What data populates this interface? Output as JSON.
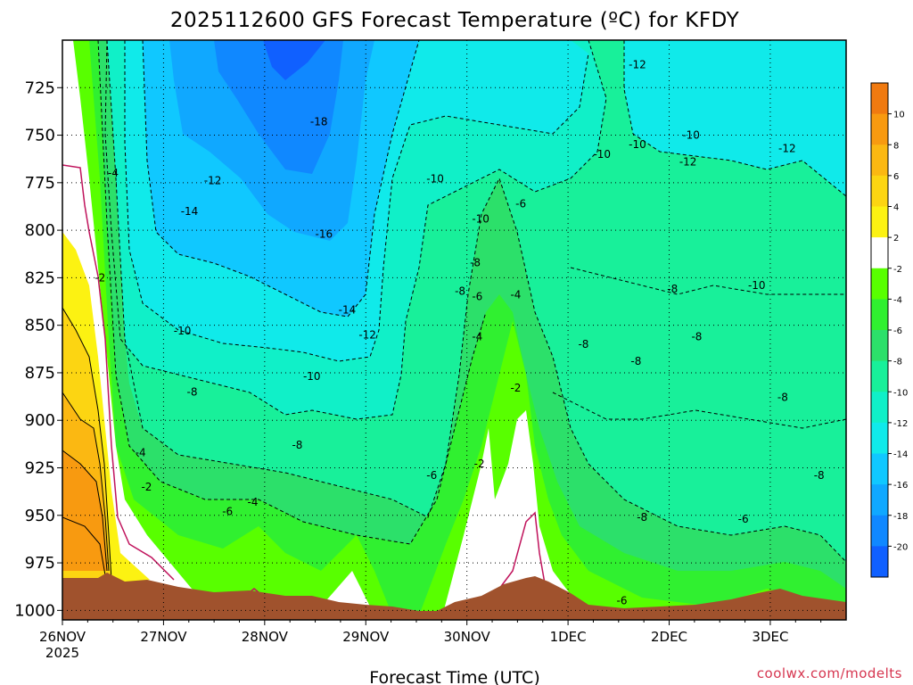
{
  "chart_data": {
    "type": "heatmap",
    "title": "2025112600 GFS Forecast Temperature (ºC) for KFDY",
    "xlabel": "Forecast Time (UTC)",
    "ylabel": "",
    "credit": "coolwx.com/modelts",
    "x_ticks": [
      "26NOV",
      "27NOV",
      "28NOV",
      "29NOV",
      "30NOV",
      "1DEC",
      "2DEC",
      "3DEC"
    ],
    "x_tick_sublabel": "2025",
    "x_range_days": [
      0,
      7.75
    ],
    "y_ticks": [
      725,
      750,
      775,
      800,
      825,
      850,
      875,
      900,
      925,
      950,
      975,
      1000
    ],
    "y_range_hpa": [
      700,
      1005
    ],
    "grid": true,
    "colorbar": {
      "levels": [
        10,
        8,
        6,
        4,
        2,
        -2,
        -4,
        -6,
        -8,
        -10,
        -12,
        -14,
        -16,
        -18,
        -20
      ],
      "colors": [
        "#f07a10",
        "#f89a10",
        "#fbb812",
        "#fcd512",
        "#fcf212",
        "#ffffff",
        "#58ff00",
        "#30f030",
        "#2ce06a",
        "#18f09a",
        "#10f0c8",
        "#10eaea",
        "#10c8ff",
        "#10a8ff",
        "#1088ff",
        "#1060ff"
      ]
    },
    "contour_labels": [
      {
        "text": "-4",
        "x": 0.45,
        "y": 770
      },
      {
        "text": "-2",
        "x": 0.32,
        "y": 825
      },
      {
        "text": "-4",
        "x": 0.72,
        "y": 917
      },
      {
        "text": "-2",
        "x": 0.78,
        "y": 935
      },
      {
        "text": "-10",
        "x": 1.1,
        "y": 853
      },
      {
        "text": "-8",
        "x": 1.23,
        "y": 885
      },
      {
        "text": "-14",
        "x": 1.17,
        "y": 790
      },
      {
        "text": "-12",
        "x": 1.4,
        "y": 774
      },
      {
        "text": "-6",
        "x": 1.58,
        "y": 948
      },
      {
        "text": "-4",
        "x": 1.83,
        "y": 943
      },
      {
        "text": "-8",
        "x": 2.27,
        "y": 913
      },
      {
        "text": "-10",
        "x": 2.38,
        "y": 877
      },
      {
        "text": "-18",
        "x": 2.45,
        "y": 743
      },
      {
        "text": "-16",
        "x": 2.5,
        "y": 802
      },
      {
        "text": "-14",
        "x": 2.73,
        "y": 842
      },
      {
        "text": "-12",
        "x": 2.93,
        "y": 855
      },
      {
        "text": "-6",
        "x": 3.6,
        "y": 929
      },
      {
        "text": "-10",
        "x": 3.6,
        "y": 773
      },
      {
        "text": "-2",
        "x": 4.07,
        "y": 923
      },
      {
        "text": "-10",
        "x": 4.05,
        "y": 794
      },
      {
        "text": "-8",
        "x": 4.03,
        "y": 817
      },
      {
        "text": "-8",
        "x": 3.88,
        "y": 832
      },
      {
        "text": "-6",
        "x": 4.05,
        "y": 835
      },
      {
        "text": "-4",
        "x": 4.05,
        "y": 856
      },
      {
        "text": "-4",
        "x": 4.43,
        "y": 834
      },
      {
        "text": "-6",
        "x": 4.48,
        "y": 786
      },
      {
        "text": "-2",
        "x": 4.43,
        "y": 883
      },
      {
        "text": "-10",
        "x": 5.25,
        "y": 760
      },
      {
        "text": "-8",
        "x": 5.1,
        "y": 860
      },
      {
        "text": "-8",
        "x": 5.62,
        "y": 869
      },
      {
        "text": "-6",
        "x": 5.48,
        "y": 995
      },
      {
        "text": "-8",
        "x": 5.68,
        "y": 951
      },
      {
        "text": "-12",
        "x": 5.6,
        "y": 713
      },
      {
        "text": "-10",
        "x": 5.6,
        "y": 755
      },
      {
        "text": "-10",
        "x": 6.13,
        "y": 750
      },
      {
        "text": "-12",
        "x": 6.1,
        "y": 764
      },
      {
        "text": "-8",
        "x": 5.98,
        "y": 831
      },
      {
        "text": "-8",
        "x": 6.22,
        "y": 856
      },
      {
        "text": "-6",
        "x": 6.68,
        "y": 952
      },
      {
        "text": "-10",
        "x": 6.78,
        "y": 829
      },
      {
        "text": "-12",
        "x": 7.08,
        "y": 757
      },
      {
        "text": "-8",
        "x": 7.07,
        "y": 888
      },
      {
        "text": "-8",
        "x": 7.43,
        "y": 929
      }
    ]
  }
}
